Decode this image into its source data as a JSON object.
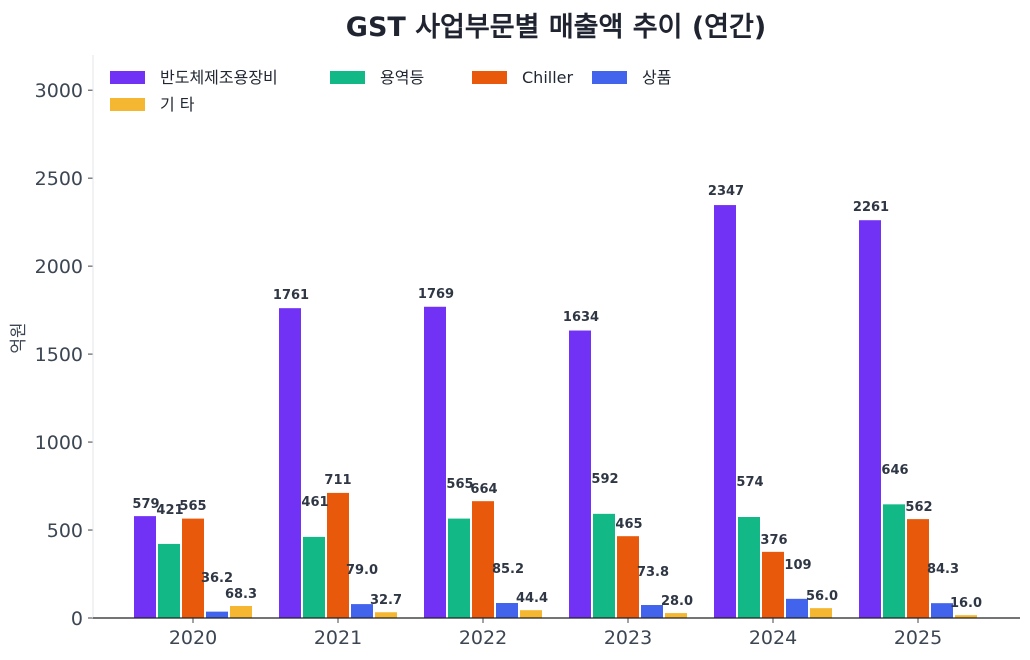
{
  "chart_data": {
    "type": "bar",
    "title": "GST 사업부문별 매출액 추이 (연간)",
    "xlabel": "",
    "ylabel": "억원",
    "ylim": [
      0,
      3200
    ],
    "yticks": [
      0,
      500,
      1000,
      1500,
      2000,
      2500,
      3000
    ],
    "categories": [
      "2020",
      "2021",
      "2022",
      "2023",
      "2024",
      "2025"
    ],
    "grid": false,
    "legend_position": "top-left",
    "series": [
      {
        "name": "반도체제조용장비",
        "color": "#7132f5",
        "values": [
          579,
          1761,
          1769,
          1634,
          2347,
          2261
        ],
        "labels": [
          "579",
          "1761",
          "1769",
          "1634",
          "2347",
          "2261"
        ]
      },
      {
        "name": "용역등",
        "color": "#12b886",
        "values": [
          421,
          461,
          565,
          592,
          574,
          646
        ],
        "labels": [
          "421",
          "461",
          "565",
          "592",
          "574",
          "646"
        ]
      },
      {
        "name": "Chiller",
        "color": "#e8590c",
        "values": [
          565,
          711,
          664,
          465,
          376,
          562
        ],
        "labels": [
          "565",
          "711",
          "664",
          "465",
          "376",
          "562"
        ]
      },
      {
        "name": "상품",
        "color": "#4263eb",
        "values": [
          36.2,
          79.0,
          85.2,
          73.8,
          109,
          84.3
        ],
        "labels": [
          "36.2",
          "79.0",
          "85.2",
          "73.8",
          "109",
          "84.3"
        ]
      },
      {
        "name": "기 타",
        "color": "#f5b731",
        "values": [
          68.3,
          32.7,
          44.4,
          28.0,
          56.0,
          16.0
        ],
        "labels": [
          "68.3",
          "32.7",
          "44.4",
          "28.0",
          "56.0",
          "16.0"
        ]
      }
    ]
  }
}
